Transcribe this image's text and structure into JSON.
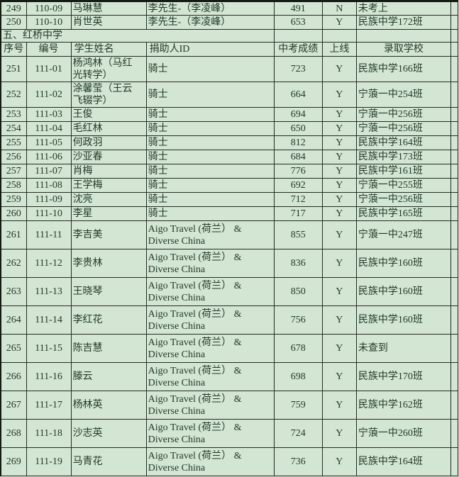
{
  "sheet": {
    "section_title": "五、红桥中学",
    "columns": {
      "no": "序号",
      "code": "编号",
      "name": "学生姓名",
      "donor": "捐助人ID",
      "score": "中考成绩",
      "online": "上线",
      "school": "录取学校"
    },
    "top_rows": [
      {
        "no": "249",
        "code": "110-09",
        "name": "马琳慧",
        "donor": "李先生-（李凌峰）",
        "score": "491",
        "online": "N",
        "school": "未考上"
      },
      {
        "no": "250",
        "code": "110-10",
        "name": "肖世英",
        "donor": "李先生-（李凌峰）",
        "score": "653",
        "online": "Y",
        "school": "民族中学172班"
      }
    ],
    "rows": [
      {
        "no": "251",
        "code": "111-01",
        "name": "杨鸿林（马红\n光转学）",
        "donor": "骑士",
        "score": "723",
        "online": "Y",
        "school": "民族中学166班"
      },
      {
        "no": "252",
        "code": "111-02",
        "name": "涂馨莹（王云\n飞辍学）",
        "donor": "骑士",
        "score": "664",
        "online": "Y",
        "school": "宁蒗一中254班"
      },
      {
        "no": "253",
        "code": "111-03",
        "name": "王俊",
        "donor": "骑士",
        "score": "694",
        "online": "Y",
        "school": "宁蒗一中256班"
      },
      {
        "no": "254",
        "code": "111-04",
        "name": "毛红林",
        "donor": "骑士",
        "score": "650",
        "online": "Y",
        "school": "宁蒗一中256班"
      },
      {
        "no": "255",
        "code": "111-05",
        "name": "何政羽",
        "donor": "骑士",
        "score": "812",
        "online": "Y",
        "school": "民族中学164班"
      },
      {
        "no": "256",
        "code": "111-06",
        "name": "沙亚春",
        "donor": "骑士",
        "score": "684",
        "online": "Y",
        "school": "民族中学173班"
      },
      {
        "no": "257",
        "code": "111-07",
        "name": "肖梅",
        "donor": "骑士",
        "score": "776",
        "online": "Y",
        "school": "民族中学161班"
      },
      {
        "no": "258",
        "code": "111-08",
        "name": "王学梅",
        "donor": "骑士",
        "score": "692",
        "online": "Y",
        "school": "宁蒗一中255班"
      },
      {
        "no": "259",
        "code": "111-09",
        "name": "沈亮",
        "donor": "骑士",
        "score": "712",
        "online": "Y",
        "school": "宁蒗一中256班"
      },
      {
        "no": "260",
        "code": "111-10",
        "name": "李星",
        "donor": "骑士",
        "score": "717",
        "online": "Y",
        "school": "民族中学165班"
      },
      {
        "no": "261",
        "code": "111-11",
        "name": "李吉美",
        "donor": "Aigo Travel (荷兰） &\nDiverse China",
        "score": "855",
        "online": "Y",
        "school": "宁蒗一中247班"
      },
      {
        "no": "262",
        "code": "111-12",
        "name": "李贵林",
        "donor": "Aigo Travel (荷兰） &\nDiverse China",
        "score": "836",
        "online": "Y",
        "school": "民族中学160班"
      },
      {
        "no": "263",
        "code": "111-13",
        "name": "王晓琴",
        "donor": "Aigo Travel (荷兰） &\nDiverse China",
        "score": "850",
        "online": "Y",
        "school": "民族中学160班"
      },
      {
        "no": "264",
        "code": "111-14",
        "name": "李红花",
        "donor": "Aigo Travel (荷兰） &\nDiverse China",
        "score": "756",
        "online": "Y",
        "school": "民族中学160班"
      },
      {
        "no": "265",
        "code": "111-15",
        "name": "陈吉慧",
        "donor": "Aigo Travel (荷兰） &\nDiverse China",
        "score": "678",
        "online": "Y",
        "school": "未查到"
      },
      {
        "no": "266",
        "code": "111-16",
        "name": "滕云",
        "donor": "Aigo Travel (荷兰） &\nDiverse China",
        "score": "698",
        "online": "Y",
        "school": "民族中学170班"
      },
      {
        "no": "267",
        "code": "111-17",
        "name": "杨林英",
        "donor": "Aigo Travel (荷兰） &\nDiverse China",
        "score": "759",
        "online": "Y",
        "school": "民族中学162班"
      },
      {
        "no": "268",
        "code": "111-18",
        "name": "沙志英",
        "donor": "Aigo Travel (荷兰） &\nDiverse China",
        "score": "724",
        "online": "Y",
        "school": "宁蒗一中260班"
      },
      {
        "no": "269",
        "code": "111-19",
        "name": "马青花",
        "donor": "Aigo Travel (荷兰） &\nDiverse China",
        "score": "736",
        "online": "Y",
        "school": "民族中学164班"
      }
    ]
  }
}
